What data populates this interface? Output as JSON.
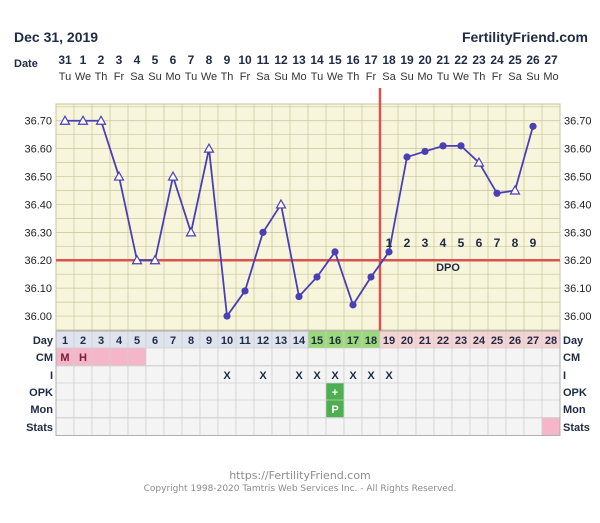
{
  "header": {
    "date": "Dec 31, 2019",
    "brand": "FertilityFriend.com",
    "date_row_label": "Date"
  },
  "chart_data": {
    "type": "line",
    "days": [
      1,
      2,
      3,
      4,
      5,
      6,
      7,
      8,
      9,
      10,
      11,
      12,
      13,
      14,
      15,
      16,
      17,
      18,
      19,
      20,
      21,
      22,
      23,
      24,
      25,
      26,
      27,
      28
    ],
    "dates": [
      "31",
      "1",
      "2",
      "3",
      "4",
      "5",
      "6",
      "7",
      "8",
      "9",
      "10",
      "11",
      "12",
      "13",
      "14",
      "15",
      "16",
      "17",
      "18",
      "19",
      "20",
      "21",
      "22",
      "23",
      "24",
      "25",
      "26",
      "27"
    ],
    "weekdays": [
      "Tu",
      "We",
      "Th",
      "Fr",
      "Sa",
      "Su",
      "Mo",
      "Tu",
      "We",
      "Th",
      "Fr",
      "Sa",
      "Su",
      "Mo",
      "Tu",
      "We",
      "Th",
      "Fr",
      "Sa",
      "Su",
      "Mo",
      "Tu",
      "We",
      "Th",
      "Fr",
      "Sa",
      "Su",
      "Mo"
    ],
    "temperatures": [
      36.7,
      36.7,
      36.7,
      36.5,
      36.2,
      36.2,
      36.5,
      36.3,
      36.6,
      36.0,
      36.09,
      36.3,
      36.4,
      36.07,
      36.14,
      36.23,
      36.04,
      36.14,
      36.23,
      36.57,
      36.59,
      36.61,
      36.61,
      36.55,
      36.44,
      36.45,
      36.68,
      null
    ],
    "markers": [
      "open",
      "open",
      "open",
      "open",
      "open",
      "open",
      "open",
      "open",
      "open",
      "filled",
      "filled",
      "filled",
      "open",
      "filled",
      "filled",
      "filled",
      "filled",
      "filled",
      "filled",
      "filled",
      "filled",
      "filled",
      "filled",
      "open",
      "filled",
      "open",
      "filled",
      null
    ],
    "y_ticks": [
      "36.00",
      "36.10",
      "36.20",
      "36.30",
      "36.40",
      "36.50",
      "36.60",
      "36.70"
    ],
    "ylim": [
      35.95,
      36.76
    ],
    "coverline": 36.2,
    "ovulation_day": 18,
    "dpo_numbers": [
      "1",
      "2",
      "3",
      "4",
      "5",
      "6",
      "7",
      "8",
      "9"
    ],
    "dpo_label": "DPO",
    "grid": true
  },
  "table": {
    "row_labels": {
      "day": "Day",
      "cm": "CM",
      "i": "I",
      "opk": "OPK",
      "mon": "Mon",
      "stats": "Stats"
    },
    "cm": {
      "1": "M",
      "2": "H"
    },
    "intercourse": {
      "10": "X",
      "12": "X",
      "14": "X",
      "15": "X",
      "16": "X",
      "17": "X",
      "18": "X",
      "19": "X"
    },
    "opk": {
      "16": "+"
    },
    "mon": {
      "16": "P"
    }
  },
  "colors": {
    "line": "#4a3fb5",
    "coverline": "#d9534f",
    "grid_bg": "#f7f6dc",
    "grid_line": "#c8c49a",
    "fertile": "#9bd87a",
    "luteal": "#f6d3d3",
    "cm_pink": "#f4b6c8"
  },
  "footer": {
    "url": "https://FertilityFriend.com",
    "copyright": "Copyright 1998-2020 Tamtris Web Services Inc. - All Rights Reserved."
  }
}
